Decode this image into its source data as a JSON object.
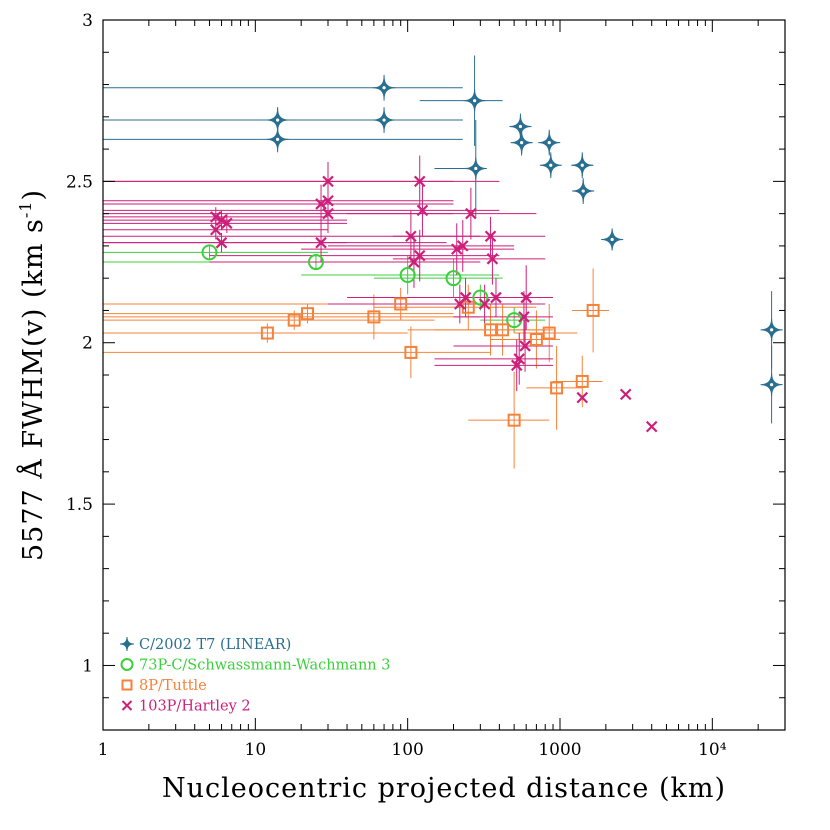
{
  "chart_data": {
    "type": "scatter",
    "title": "",
    "xlabel": "Nucleocentric projected distance (km)",
    "ylabel": "5577 Å FWHM(v) (km s",
    "ylabel_sup": "-1",
    "ylabel_tail": ")",
    "xscale": "log",
    "xlim": [
      1,
      30000
    ],
    "ylim": [
      0.8,
      3.0
    ],
    "x_ticks": [
      {
        "value": 1,
        "label": "1"
      },
      {
        "value": 10,
        "label": "10"
      },
      {
        "value": 100,
        "label": "100"
      },
      {
        "value": 1000,
        "label": "1000"
      },
      {
        "value": 10000,
        "label": "10⁴"
      }
    ],
    "y_ticks": [
      {
        "value": 1,
        "label": "1"
      },
      {
        "value": 1.5,
        "label": "1.5"
      },
      {
        "value": 2,
        "label": "2"
      },
      {
        "value": 2.5,
        "label": "2.5"
      },
      {
        "value": 3,
        "label": "3"
      }
    ],
    "grid": false,
    "legend_position": "bottom-left",
    "series": [
      {
        "name": "C/2002 T7 (LINEAR)",
        "marker": "star",
        "color": "#2a6f8f",
        "points": [
          {
            "x": 14,
            "y": 2.69,
            "xmin": 1,
            "xmax": 230,
            "yerr": 0.04
          },
          {
            "x": 14,
            "y": 2.63,
            "xmin": 1,
            "xmax": 230,
            "yerr": 0.04
          },
          {
            "x": 70,
            "y": 2.79,
            "xmin": 1,
            "xmax": 230,
            "yerr": 0.04
          },
          {
            "x": 70,
            "y": 2.69,
            "xmin": 1,
            "xmax": 230,
            "yerr": 0.04
          },
          {
            "x": 275,
            "y": 2.75,
            "xmin": 120,
            "xmax": 420,
            "yerr": 0.14
          },
          {
            "x": 280,
            "y": 2.54,
            "xmin": 150,
            "xmax": 330,
            "yerr": 0.15
          },
          {
            "x": 550,
            "y": 2.67,
            "xmin": 480,
            "xmax": 650,
            "yerr": 0.04
          },
          {
            "x": 560,
            "y": 2.62,
            "xmin": 490,
            "xmax": 660,
            "yerr": 0.04
          },
          {
            "x": 850,
            "y": 2.62,
            "xmin": 750,
            "xmax": 950,
            "yerr": 0.04
          },
          {
            "x": 870,
            "y": 2.55,
            "xmin": 760,
            "xmax": 980,
            "yerr": 0.04
          },
          {
            "x": 1400,
            "y": 2.55,
            "xmin": 1200,
            "xmax": 1650,
            "yerr": 0.04
          },
          {
            "x": 1420,
            "y": 2.47,
            "xmin": 1250,
            "xmax": 1650,
            "yerr": 0.04
          },
          {
            "x": 2200,
            "y": 2.32,
            "xmin": 2000,
            "xmax": 2450,
            "yerr": 0.02
          },
          {
            "x": 24500,
            "y": 2.04,
            "xmin": 22000,
            "xmax": 26500,
            "yerr": 0.12
          },
          {
            "x": 24500,
            "y": 1.87,
            "xmin": 22000,
            "xmax": 26500,
            "yerr": 0.12
          }
        ]
      },
      {
        "name": "73P-C/Schwassmann-Wachmann 3",
        "marker": "circle",
        "color": "#3ccf3c",
        "points": [
          {
            "x": 5,
            "y": 2.28,
            "xmin": 1,
            "xmax": 30,
            "yerr": 0.02
          },
          {
            "x": 25,
            "y": 2.25,
            "xmin": 1,
            "xmax": 200,
            "yerr": 0.02
          },
          {
            "x": 100,
            "y": 2.21,
            "xmin": 20,
            "xmax": 400,
            "yerr": 0.06
          },
          {
            "x": 200,
            "y": 2.2,
            "xmin": 60,
            "xmax": 420,
            "yerr": 0.06
          },
          {
            "x": 300,
            "y": 2.14,
            "xmin": 150,
            "xmax": 500,
            "yerr": 0.04
          },
          {
            "x": 500,
            "y": 2.07,
            "xmin": 300,
            "xmax": 800,
            "yerr": 0.04
          }
        ]
      },
      {
        "name": "8P/Tuttle",
        "marker": "square",
        "color": "#f5823a",
        "points": [
          {
            "x": 12,
            "y": 2.03,
            "xmin": 1,
            "xmax": 100,
            "yerr": 0.03
          },
          {
            "x": 18,
            "y": 2.07,
            "xmin": 1,
            "xmax": 150,
            "yerr": 0.03
          },
          {
            "x": 22,
            "y": 2.09,
            "xmin": 1,
            "xmax": 200,
            "yerr": 0.03
          },
          {
            "x": 60,
            "y": 2.08,
            "xmin": 1,
            "xmax": 300,
            "yerr": 0.07
          },
          {
            "x": 90,
            "y": 2.12,
            "xmin": 1,
            "xmax": 400,
            "yerr": 0.05
          },
          {
            "x": 105,
            "y": 1.97,
            "xmin": 1,
            "xmax": 350,
            "yerr": 0.08
          },
          {
            "x": 250,
            "y": 2.11,
            "xmin": 60,
            "xmax": 700,
            "yerr": 0.07
          },
          {
            "x": 350,
            "y": 2.04,
            "xmin": 100,
            "xmax": 800,
            "yerr": 0.08
          },
          {
            "x": 420,
            "y": 2.04,
            "xmin": 150,
            "xmax": 900,
            "yerr": 0.08
          },
          {
            "x": 500,
            "y": 1.76,
            "xmin": 250,
            "xmax": 850,
            "yerr": 0.15
          },
          {
            "x": 700,
            "y": 2.01,
            "xmin": 350,
            "xmax": 1000,
            "yerr": 0.09
          },
          {
            "x": 850,
            "y": 2.03,
            "xmin": 500,
            "xmax": 1300,
            "yerr": 0.09
          },
          {
            "x": 950,
            "y": 1.86,
            "xmin": 600,
            "xmax": 1400,
            "yerr": 0.13
          },
          {
            "x": 1400,
            "y": 1.88,
            "xmin": 900,
            "xmax": 1900,
            "yerr": 0.08
          },
          {
            "x": 1650,
            "y": 2.1,
            "xmin": 1200,
            "xmax": 2100,
            "yerr": 0.13
          }
        ]
      },
      {
        "name": "103P/Hartley 2",
        "marker": "x",
        "color": "#cc1f7a",
        "points": [
          {
            "x": 5.5,
            "y": 2.39,
            "xmin": 1,
            "xmax": 30,
            "yerr": 0.03
          },
          {
            "x": 5.5,
            "y": 2.35,
            "xmin": 1,
            "xmax": 30,
            "yerr": 0.03
          },
          {
            "x": 6,
            "y": 2.38,
            "xmin": 1,
            "xmax": 40,
            "yerr": 0.03
          },
          {
            "x": 6,
            "y": 2.31,
            "xmin": 1,
            "xmax": 40,
            "yerr": 0.03
          },
          {
            "x": 6.5,
            "y": 2.37,
            "xmin": 1,
            "xmax": 40,
            "yerr": 0.03
          },
          {
            "x": 27,
            "y": 2.43,
            "xmin": 1,
            "xmax": 200,
            "yerr": 0.06
          },
          {
            "x": 27,
            "y": 2.31,
            "xmin": 1,
            "xmax": 180,
            "yerr": 0.06
          },
          {
            "x": 30,
            "y": 2.5,
            "xmin": 1,
            "xmax": 200,
            "yerr": 0.06
          },
          {
            "x": 30,
            "y": 2.44,
            "xmin": 1,
            "xmax": 200,
            "yerr": 0.06
          },
          {
            "x": 30,
            "y": 2.4,
            "xmin": 1,
            "xmax": 200,
            "yerr": 0.06
          },
          {
            "x": 105,
            "y": 2.33,
            "xmin": 1,
            "xmax": 300,
            "yerr": 0.08
          },
          {
            "x": 110,
            "y": 2.25,
            "xmin": 5,
            "xmax": 300,
            "yerr": 0.08
          },
          {
            "x": 120,
            "y": 2.5,
            "xmin": 1,
            "xmax": 400,
            "yerr": 0.08
          },
          {
            "x": 120,
            "y": 2.27,
            "xmin": 5,
            "xmax": 400,
            "yerr": 0.08
          },
          {
            "x": 125,
            "y": 2.41,
            "xmin": 1,
            "xmax": 400,
            "yerr": 0.08
          },
          {
            "x": 210,
            "y": 2.29,
            "xmin": 20,
            "xmax": 500,
            "yerr": 0.08
          },
          {
            "x": 220,
            "y": 2.12,
            "xmin": 30,
            "xmax": 500,
            "yerr": 0.06
          },
          {
            "x": 230,
            "y": 2.3,
            "xmin": 30,
            "xmax": 500,
            "yerr": 0.08
          },
          {
            "x": 240,
            "y": 2.14,
            "xmin": 40,
            "xmax": 600,
            "yerr": 0.06
          },
          {
            "x": 260,
            "y": 2.4,
            "xmin": 40,
            "xmax": 700,
            "yerr": 0.08
          },
          {
            "x": 320,
            "y": 2.12,
            "xmin": 60,
            "xmax": 800,
            "yerr": 0.06
          },
          {
            "x": 350,
            "y": 2.33,
            "xmin": 80,
            "xmax": 800,
            "yerr": 0.06
          },
          {
            "x": 360,
            "y": 2.26,
            "xmin": 80,
            "xmax": 800,
            "yerr": 0.08
          },
          {
            "x": 380,
            "y": 2.14,
            "xmin": 100,
            "xmax": 800,
            "yerr": 0.06
          },
          {
            "x": 520,
            "y": 1.93,
            "xmin": 150,
            "xmax": 900,
            "yerr": 0.08
          },
          {
            "x": 540,
            "y": 1.95,
            "xmin": 150,
            "xmax": 900,
            "yerr": 0.08
          },
          {
            "x": 580,
            "y": 2.08,
            "xmin": 200,
            "xmax": 900,
            "yerr": 0.08
          },
          {
            "x": 590,
            "y": 1.99,
            "xmin": 200,
            "xmax": 900,
            "yerr": 0.08
          },
          {
            "x": 600,
            "y": 2.14,
            "xmin": 200,
            "xmax": 900,
            "yerr": 0.1
          },
          {
            "x": 1400,
            "y": 1.83,
            "xmin": 1400,
            "xmax": 1400,
            "yerr": 0.0
          },
          {
            "x": 2700,
            "y": 1.84,
            "xmin": 2700,
            "xmax": 2700,
            "yerr": 0.0
          },
          {
            "x": 4000,
            "y": 1.74,
            "xmin": 4000,
            "xmax": 4000,
            "yerr": 0.0
          }
        ]
      }
    ]
  }
}
